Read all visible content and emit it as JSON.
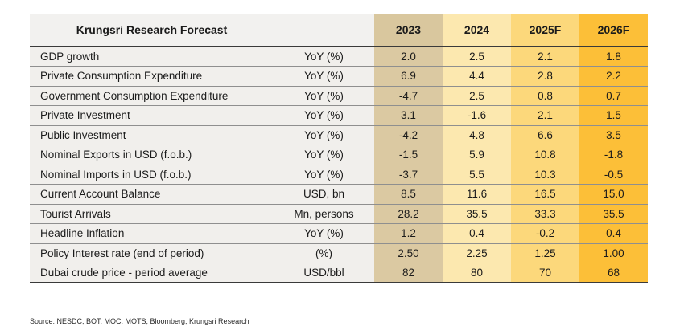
{
  "chart_data": {
    "type": "table",
    "title": "Krungsri Research Forecast",
    "year_columns": [
      "2023",
      "2024",
      "2025F",
      "2026F"
    ],
    "rows": [
      {
        "label": "GDP growth",
        "unit": "YoY (%)",
        "values": [
          "2.0",
          "2.5",
          "2.1",
          "1.8"
        ]
      },
      {
        "label": "Private Consumption Expenditure",
        "unit": "YoY (%)",
        "values": [
          "6.9",
          "4.4",
          "2.8",
          "2.2"
        ]
      },
      {
        "label": "Government Consumption Expenditure",
        "unit": "YoY (%)",
        "values": [
          "-4.7",
          "2.5",
          "0.8",
          "0.7"
        ]
      },
      {
        "label": "Private Investment",
        "unit": "YoY (%)",
        "values": [
          "3.1",
          "-1.6",
          "2.1",
          "1.5"
        ]
      },
      {
        "label": "Public Investment",
        "unit": "YoY (%)",
        "values": [
          "-4.2",
          "4.8",
          "6.6",
          "3.5"
        ]
      },
      {
        "label": "Nominal Exports in USD (f.o.b.)",
        "unit": "YoY (%)",
        "values": [
          "-1.5",
          "5.9",
          "10.8",
          "-1.8"
        ]
      },
      {
        "label": "Nominal Imports in USD (f.o.b.)",
        "unit": "YoY (%)",
        "values": [
          "-3.7",
          "5.5",
          "10.3",
          "-0.5"
        ]
      },
      {
        "label": "Current Account Balance",
        "unit": "USD, bn",
        "values": [
          "8.5",
          "11.6",
          "16.5",
          "15.0"
        ]
      },
      {
        "label": "Tourist Arrivals",
        "unit": "Mn, persons",
        "values": [
          "28.2",
          "35.5",
          "33.3",
          "35.5"
        ]
      },
      {
        "label": "Headline Inflation",
        "unit": "YoY (%)",
        "values": [
          "1.2",
          "0.4",
          "-0.2",
          "0.4"
        ]
      },
      {
        "label": "Policy Interest rate (end of period)",
        "unit": "(%)",
        "values": [
          "2.50",
          "2.25",
          "1.25",
          "1.00"
        ]
      },
      {
        "label": "Dubai crude price - period average",
        "unit": "USD/bbl",
        "values": [
          "82",
          "80",
          "70",
          "68"
        ]
      }
    ]
  },
  "source": "Source: NESDC, BOT, MOC, MOTS, Bloomberg, Krungsri Research",
  "colors": {
    "col_2023": "#d9c79e",
    "col_2024": "#fce8af",
    "col_2025f": "#fcd87b",
    "col_2026f": "#fcbf38",
    "label_bg": "#f1efec",
    "header_bg": "#f2f1ef",
    "rule_dark": "#3a3a3a",
    "rule_light": "#8f8f8f"
  }
}
